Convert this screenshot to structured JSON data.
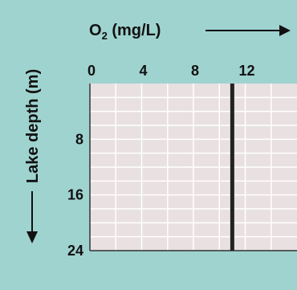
{
  "chart_data": {
    "type": "line",
    "title": "",
    "xlabel": "O2 (mg/L)",
    "xlabel_main": "O",
    "xlabel_sub": "2",
    "xlabel_unit": " (mg/L)",
    "ylabel": "Lake depth (m)",
    "x_ticks": [
      "0",
      "4",
      "8",
      "12"
    ],
    "y_ticks": [
      "8",
      "16",
      "24"
    ],
    "xlim": [
      0,
      16
    ],
    "ylim": [
      0,
      24
    ],
    "y_inverted": true,
    "x_axis_position": "top",
    "grid": true,
    "series": [
      {
        "x": [
          11,
          11
        ],
        "y": [
          0,
          24
        ],
        "color": "#222222"
      }
    ],
    "colors": {
      "background": "#9fd3d0",
      "plot_area": "#e9e1e1",
      "grid": "#ffffff",
      "line": "#222222"
    }
  }
}
